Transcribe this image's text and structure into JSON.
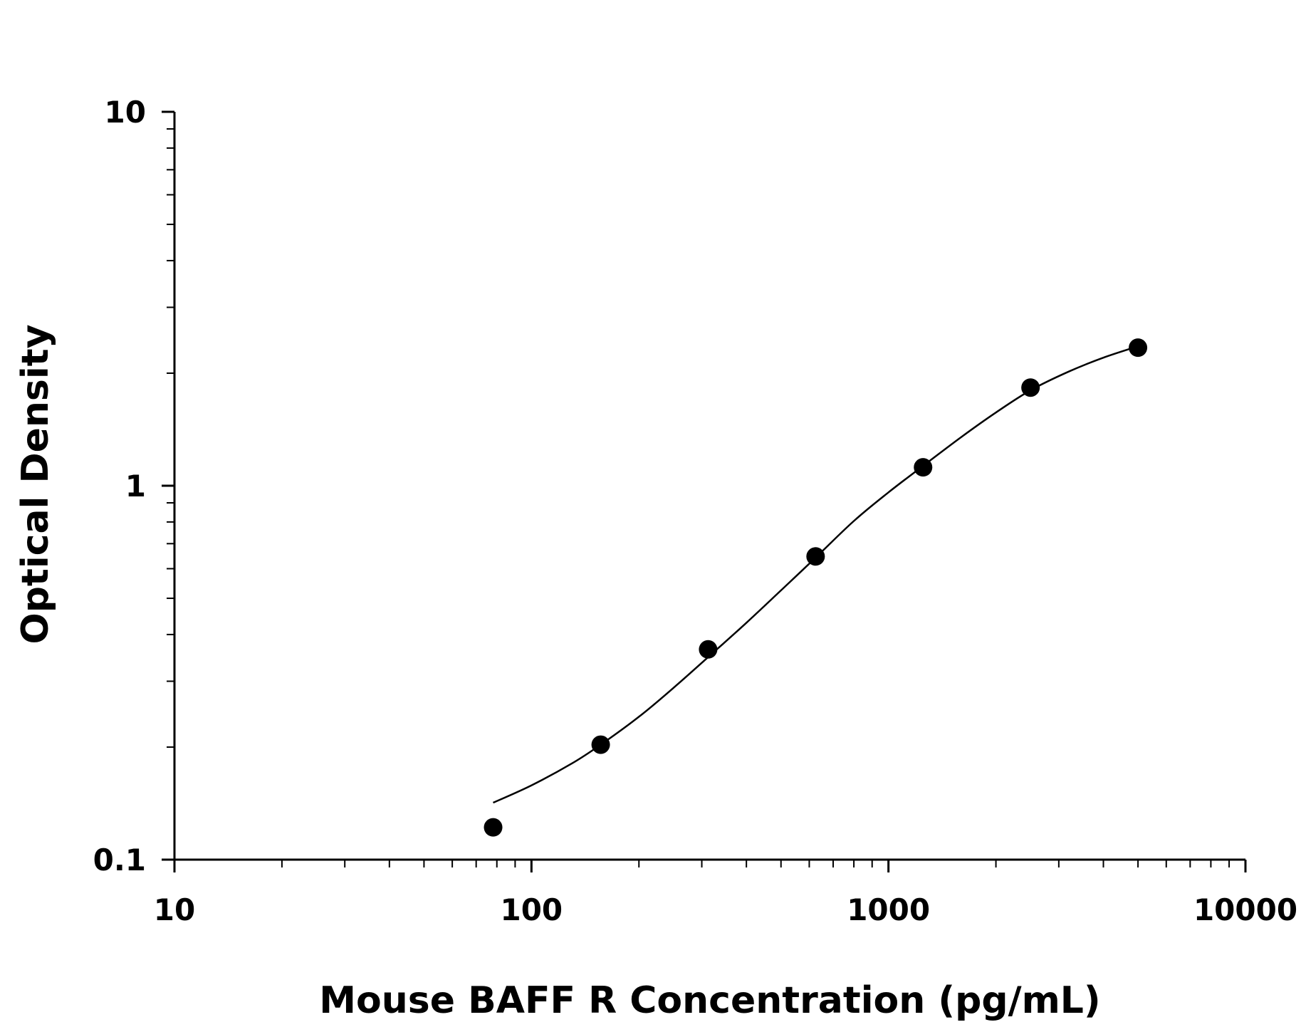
{
  "chart_data": {
    "type": "scatter",
    "xlabel": "Mouse BAFF R Concentration (pg/mL)",
    "ylabel": "Optical Density",
    "x_scale": "log",
    "y_scale": "log",
    "xlim": [
      10,
      10000
    ],
    "ylim": [
      0.1,
      10
    ],
    "x_ticks": [
      "10",
      "100",
      "1000",
      "10000"
    ],
    "y_ticks": [
      "0.1",
      "1",
      "10"
    ],
    "grid": false,
    "legend": "none",
    "colors": {
      "points": "#000000",
      "curve": "#000000",
      "axes": "#000000"
    },
    "series": [
      {
        "points": [
          {
            "x": 78.1,
            "y": 0.122
          },
          {
            "x": 156.3,
            "y": 0.203
          },
          {
            "x": 312.5,
            "y": 0.365
          },
          {
            "x": 625,
            "y": 0.647
          },
          {
            "x": 1250,
            "y": 1.12
          },
          {
            "x": 2500,
            "y": 1.83
          },
          {
            "x": 5000,
            "y": 2.34
          }
        ]
      }
    ],
    "fit_curve": {
      "x": [
        78.1,
        100,
        130,
        156.3,
        200,
        250,
        312.5,
        400,
        500,
        625,
        800,
        1000,
        1250,
        1600,
        2000,
        2500,
        3200,
        4000,
        5000
      ],
      "y": [
        0.142,
        0.158,
        0.181,
        0.203,
        0.241,
        0.288,
        0.348,
        0.43,
        0.525,
        0.642,
        0.805,
        0.96,
        1.13,
        1.35,
        1.57,
        1.8,
        2.02,
        2.2,
        2.36
      ]
    }
  }
}
